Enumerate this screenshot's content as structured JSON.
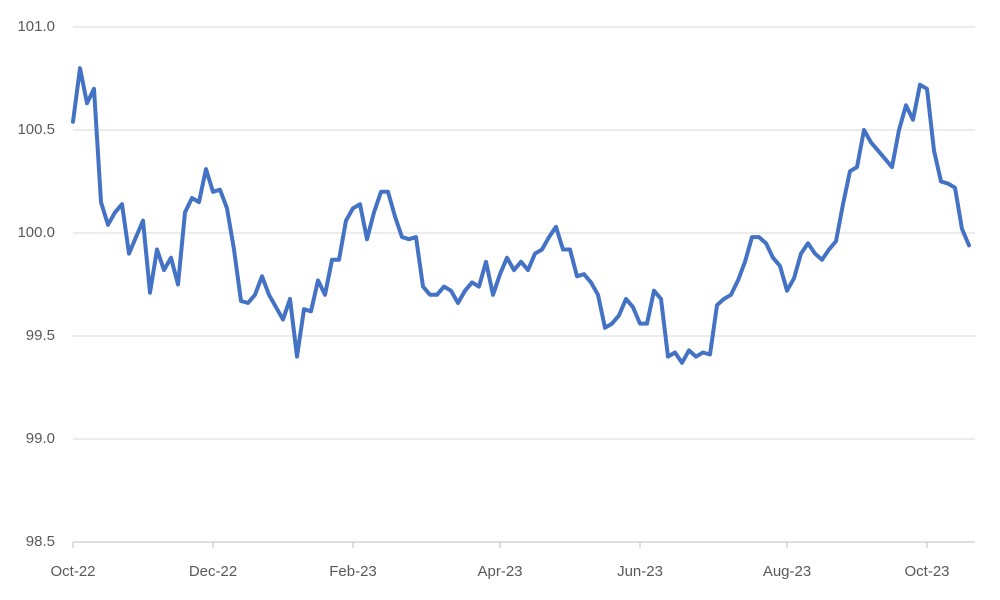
{
  "chart_data": {
    "type": "line",
    "categories": [
      "Oct-22",
      null,
      null,
      null,
      null,
      null,
      null,
      null,
      null,
      null,
      null,
      null,
      null,
      null,
      null,
      null,
      null,
      null,
      null,
      null,
      "Dec-22",
      null,
      null,
      null,
      null,
      null,
      null,
      null,
      null,
      null,
      null,
      null,
      null,
      null,
      null,
      null,
      null,
      null,
      null,
      null,
      "Feb-23",
      null,
      null,
      null,
      null,
      null,
      null,
      null,
      null,
      null,
      null,
      null,
      null,
      null,
      null,
      null,
      null,
      null,
      null,
      null,
      null,
      "Apr-23",
      null,
      null,
      null,
      null,
      null,
      null,
      null,
      null,
      null,
      null,
      null,
      null,
      null,
      null,
      null,
      null,
      null,
      null,
      null,
      "Jun-23",
      null,
      null,
      null,
      null,
      null,
      null,
      null,
      null,
      null,
      null,
      null,
      null,
      null,
      null,
      null,
      null,
      null,
      null,
      null,
      null,
      "Aug-23",
      null,
      null,
      null,
      null,
      null,
      null,
      null,
      null,
      null,
      null,
      null,
      null,
      null,
      null,
      null,
      null,
      null,
      null,
      null,
      "Oct-23",
      null,
      null,
      null,
      null,
      null,
      null
    ],
    "series": [
      {
        "color": "#4472c4",
        "values": [
          100.54,
          100.8,
          100.63,
          100.7,
          100.15,
          100.04,
          100.1,
          100.14,
          99.9,
          99.98,
          100.06,
          99.71,
          99.92,
          99.82,
          99.88,
          99.75,
          100.1,
          100.17,
          100.15,
          100.31,
          100.2,
          100.21,
          100.12,
          99.92,
          99.67,
          99.66,
          99.7,
          99.79,
          99.7,
          99.64,
          99.58,
          99.68,
          99.4,
          99.63,
          99.62,
          99.77,
          99.7,
          99.87,
          99.87,
          100.06,
          100.12,
          100.14,
          99.97,
          100.1,
          100.2,
          100.2,
          100.08,
          99.98,
          99.97,
          99.98,
          99.74,
          99.7,
          99.7,
          99.74,
          99.72,
          99.66,
          99.72,
          99.76,
          99.74,
          99.86,
          99.7,
          99.8,
          99.88,
          99.82,
          99.86,
          99.82,
          99.9,
          99.92,
          99.98,
          100.03,
          99.92,
          99.92,
          99.79,
          99.8,
          99.76,
          99.7,
          99.54,
          99.56,
          99.6,
          99.68,
          99.64,
          99.56,
          99.56,
          99.72,
          99.68,
          99.4,
          99.42,
          99.37,
          99.43,
          99.4,
          99.42,
          99.41,
          99.65,
          99.68,
          99.7,
          99.77,
          99.86,
          99.98,
          99.98,
          99.95,
          99.88,
          99.84,
          99.72,
          99.78,
          99.9,
          99.95,
          99.9,
          99.87,
          99.92,
          99.96,
          100.14,
          100.3,
          100.32,
          100.5,
          100.44,
          100.4,
          100.36,
          100.32,
          100.5,
          100.62,
          100.55,
          100.72,
          100.7,
          100.4,
          100.25,
          100.24,
          100.22,
          100.02,
          99.94
        ]
      }
    ],
    "ylim": [
      98.5,
      101
    ],
    "yticks": [
      {
        "value": 98.5,
        "label": "98.5"
      },
      {
        "value": 99,
        "label": "99.0"
      },
      {
        "value": 99.5,
        "label": "99.5"
      },
      {
        "value": 100,
        "label": "100.0"
      },
      {
        "value": 100.5,
        "label": "100.5"
      },
      {
        "value": 101,
        "label": "101.0"
      }
    ],
    "grid": true
  }
}
